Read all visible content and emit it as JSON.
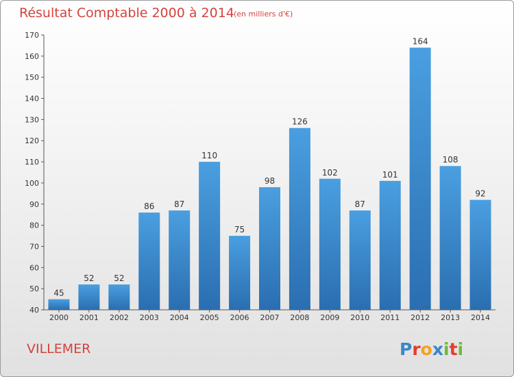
{
  "chart_data": {
    "type": "bar",
    "title": "Résultat Comptable 2000 à 2014",
    "subtitle": "(en milliers d'€)",
    "categories": [
      "2000",
      "2001",
      "2002",
      "2003",
      "2004",
      "2005",
      "2006",
      "2007",
      "2008",
      "2009",
      "2010",
      "2011",
      "2012",
      "2013",
      "2014"
    ],
    "values": [
      45,
      52,
      52,
      86,
      87,
      110,
      75,
      98,
      126,
      102,
      87,
      101,
      164,
      108,
      92
    ],
    "ylim": [
      40,
      170
    ],
    "yticks": [
      40,
      50,
      60,
      70,
      80,
      90,
      100,
      110,
      120,
      130,
      140,
      150,
      160,
      170
    ],
    "grid": false,
    "bar_color": "#4a9fe0",
    "bar_color_dark": "#2a6eb0"
  },
  "commune": "VILLEMER",
  "logo": {
    "text": "Proxiti",
    "letter_colors": [
      "#3b86c9",
      "#e63c2c",
      "#f2a224",
      "#3b86c9",
      "#6dbb3a",
      "#e63c2c",
      "#6dbb3a"
    ]
  }
}
